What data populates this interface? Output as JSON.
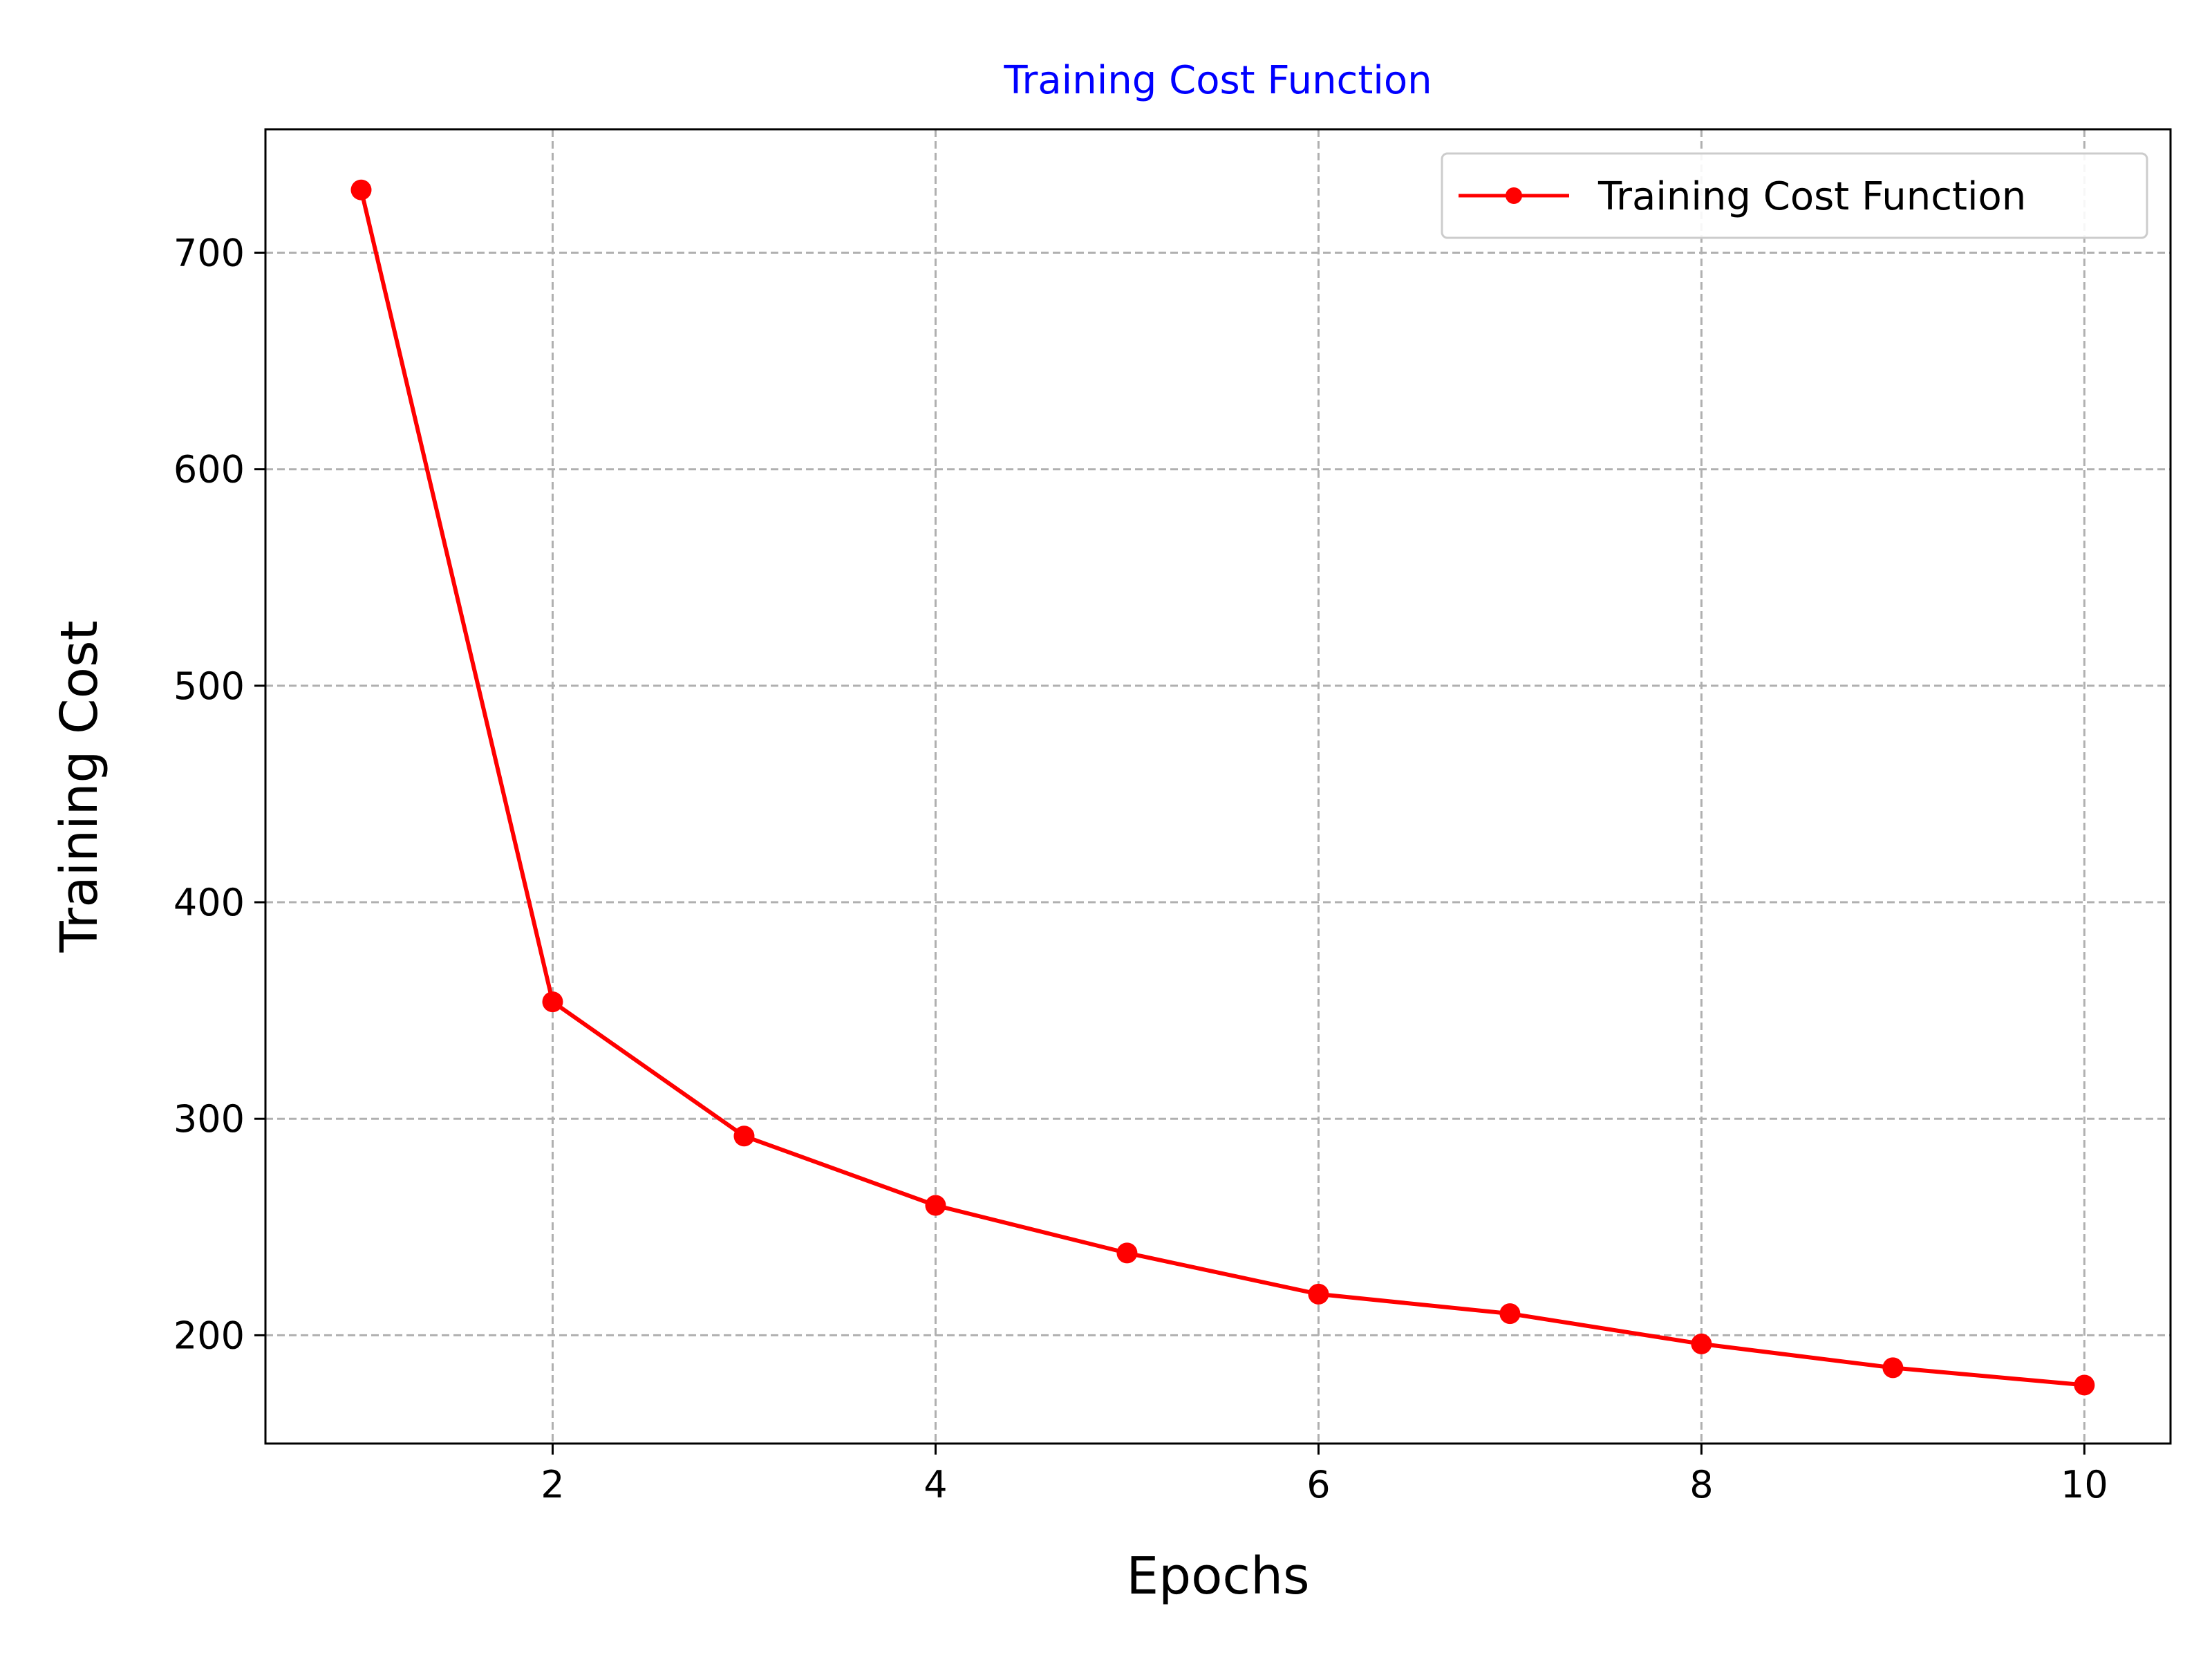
{
  "chart_data": {
    "type": "line",
    "title": "Training Cost Function",
    "xlabel": "Epochs",
    "ylabel": "Training Cost",
    "xlim": [
      0.5,
      10.45
    ],
    "ylim": [
      150,
      757
    ],
    "x_ticks": [
      2,
      4,
      6,
      8,
      10
    ],
    "y_ticks": [
      200,
      300,
      400,
      500,
      600,
      700
    ],
    "x_tick_labels": [
      "2",
      "4",
      "6",
      "8",
      "10"
    ],
    "y_tick_labels": [
      "200",
      "300",
      "400",
      "500",
      "600",
      "700"
    ],
    "grid": true,
    "legend_position": "top-right",
    "title_color": "#0000ff",
    "series": [
      {
        "name": "Training Cost Function",
        "color": "#ff0000",
        "marker": "circle",
        "x": [
          1,
          2,
          3,
          4,
          5,
          6,
          7,
          8,
          9,
          10
        ],
        "values": [
          729,
          354,
          292,
          260,
          238,
          219,
          210,
          196,
          185,
          177
        ]
      }
    ]
  }
}
